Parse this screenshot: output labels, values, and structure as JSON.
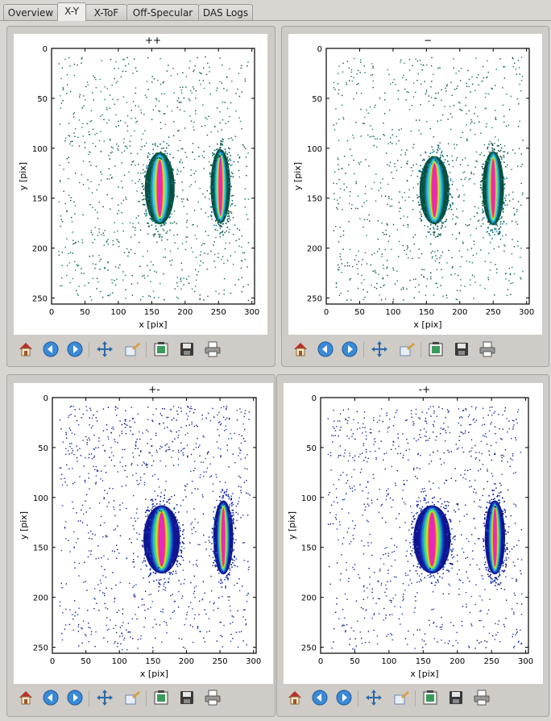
{
  "tabs": [
    "Overview",
    "X-Y",
    "X-ToF",
    "Off-Specular",
    "DAS Logs"
  ],
  "active_tab": "X-Y",
  "toolbar_icons": [
    "home-icon",
    "back-icon",
    "forward-icon",
    "pan-icon",
    "zoom-icon",
    "subplots-icon",
    "save-icon",
    "print-icon"
  ],
  "plots": [
    {
      "title": "++",
      "xlabel": "x [pix]",
      "ylabel": "y [pix]"
    },
    {
      "title": "−",
      "xlabel": "x [pix]",
      "ylabel": "y [pix]"
    },
    {
      "title": "+-",
      "xlabel": "x [pix]",
      "ylabel": "y [pix]"
    },
    {
      "title": "-+",
      "xlabel": "x [pix]",
      "ylabel": "y [pix]"
    }
  ],
  "chart_data": [
    {
      "type": "heatmap",
      "title": "++",
      "xlabel": "x [pix]",
      "ylabel": "y [pix]",
      "xlim": [
        0,
        304
      ],
      "ylim": [
        256,
        0
      ],
      "xticks": [
        "0",
        "50",
        "100",
        "150",
        "200",
        "250",
        "300"
      ],
      "yticks": [
        "0",
        "50",
        "100",
        "150",
        "200",
        "250"
      ],
      "colormap": "dark-green-blue-yellow-red",
      "hotspots": [
        {
          "x": 162,
          "y": 140,
          "x_halfwidth": 18,
          "y_halfwidth": 37
        },
        {
          "x": 253,
          "y": 138,
          "x_halfwidth": 12,
          "y_halfwidth": 38
        }
      ]
    },
    {
      "type": "heatmap",
      "title": "−",
      "xlabel": "x [pix]",
      "ylabel": "y [pix]",
      "xlim": [
        0,
        304
      ],
      "ylim": [
        256,
        0
      ],
      "xticks": [
        "0",
        "50",
        "100",
        "150",
        "200",
        "250",
        "300"
      ],
      "yticks": [
        "0",
        "50",
        "100",
        "150",
        "200",
        "250"
      ],
      "colormap": "dark-green-blue-yellow-red",
      "hotspots": [
        {
          "x": 162,
          "y": 142,
          "x_halfwidth": 18,
          "y_halfwidth": 35
        },
        {
          "x": 250,
          "y": 140,
          "x_halfwidth": 13,
          "y_halfwidth": 38
        }
      ]
    },
    {
      "type": "heatmap",
      "title": "+-",
      "xlabel": "x [pix]",
      "ylabel": "y [pix]",
      "xlim": [
        0,
        304
      ],
      "ylim": [
        256,
        0
      ],
      "xticks": [
        "0",
        "50",
        "100",
        "150",
        "200",
        "250",
        "300"
      ],
      "yticks": [
        "0",
        "50",
        "100",
        "150",
        "200",
        "250"
      ],
      "colormap": "dark-blue-green-yellow-red",
      "hotspots": [
        {
          "x": 163,
          "y": 142,
          "x_halfwidth": 22,
          "y_halfwidth": 35
        },
        {
          "x": 255,
          "y": 140,
          "x_halfwidth": 12,
          "y_halfwidth": 38
        }
      ]
    },
    {
      "type": "heatmap",
      "title": "-+",
      "xlabel": "x [pix]",
      "ylabel": "y [pix]",
      "xlim": [
        0,
        304
      ],
      "ylim": [
        256,
        0
      ],
      "xticks": [
        "0",
        "50",
        "100",
        "150",
        "200",
        "250",
        "300"
      ],
      "yticks": [
        "0",
        "50",
        "100",
        "150",
        "200",
        "250"
      ],
      "colormap": "dark-blue-green-yellow-red",
      "hotspots": [
        {
          "x": 163,
          "y": 142,
          "x_halfwidth": 22,
          "y_halfwidth": 35
        },
        {
          "x": 255,
          "y": 140,
          "x_halfwidth": 12,
          "y_halfwidth": 38
        }
      ]
    }
  ]
}
